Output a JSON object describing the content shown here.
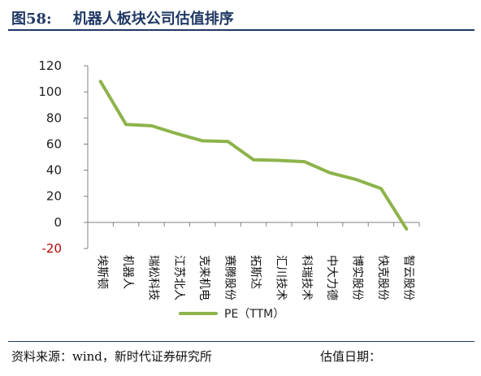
{
  "header": {
    "figure_label": "图58:",
    "title": "机器人板块公司估值排序"
  },
  "chart_data": {
    "type": "line",
    "categories": [
      "埃斯顿",
      "机器人",
      "瑞松科技",
      "江苏北人",
      "克来机电",
      "赛腾股份",
      "拓斯达",
      "汇川技术",
      "科瑞技术",
      "中大力德",
      "博实股份",
      "快克股份",
      "智云股份"
    ],
    "series": [
      {
        "name": "PE（TTM）",
        "values": [
          108,
          75,
          74,
          68,
          62.5,
          62,
          48,
          47.5,
          46.5,
          38,
          33,
          26,
          -5
        ]
      }
    ],
    "ylim": [
      -20,
      120
    ],
    "yticks": [
      -20,
      0,
      20,
      40,
      60,
      80,
      100,
      120
    ],
    "negative_tick_color": "#c00000",
    "line_color": "#8db34a",
    "legend_position": "bottom",
    "grid": false
  },
  "footer": {
    "source": "资料来源：wind，新时代证券研究所",
    "date_label": "估值日期："
  }
}
